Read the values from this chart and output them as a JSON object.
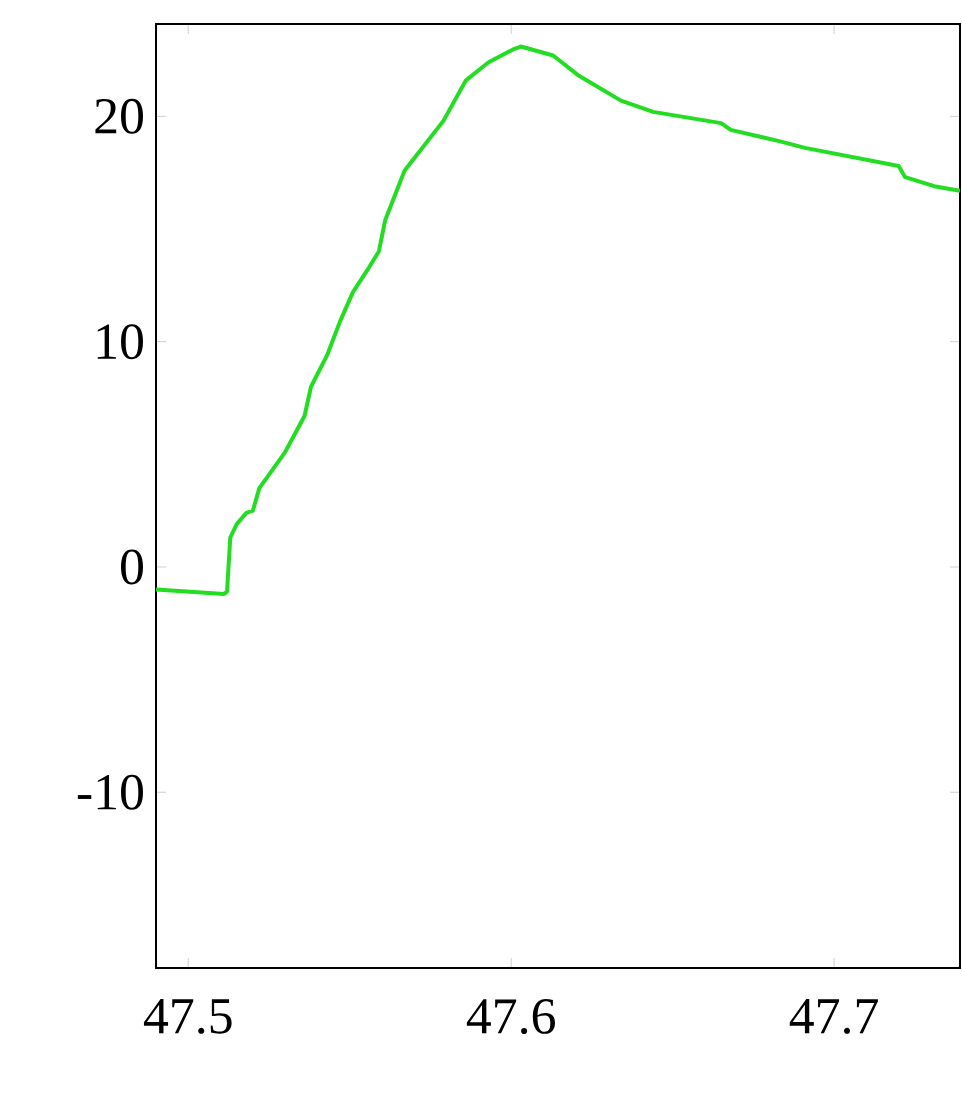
{
  "chart_data": {
    "type": "line",
    "color": "#22dd22",
    "x": [
      47.49,
      47.5006,
      47.511,
      47.512,
      47.513,
      47.515,
      47.518,
      47.52,
      47.522,
      47.527,
      47.53,
      47.536,
      47.538,
      47.543,
      47.547,
      47.551,
      47.556,
      47.559,
      47.561,
      47.567,
      47.573,
      47.579,
      47.586,
      47.593,
      47.601,
      47.603,
      47.613,
      47.621,
      47.634,
      47.644,
      47.665,
      47.668,
      47.683,
      47.691,
      47.72,
      47.722,
      47.731,
      47.739
    ],
    "values": [
      -1.0,
      -1.1,
      -1.2,
      -1.1,
      1.3,
      1.9,
      2.4,
      2.5,
      3.5,
      4.5,
      5.1,
      6.7,
      8.0,
      9.4,
      10.9,
      12.2,
      13.3,
      14.0,
      15.4,
      17.6,
      18.7,
      19.8,
      21.6,
      22.4,
      23.0,
      23.1,
      22.7,
      21.8,
      20.7,
      20.2,
      19.7,
      19.4,
      18.9,
      18.6,
      17.8,
      17.3,
      16.9,
      16.7
    ],
    "xlim": [
      47.49,
      47.739
    ],
    "ylim": [
      -17.8,
      24.1
    ],
    "xticks": [
      47.5,
      47.6,
      47.7
    ],
    "yticks": [
      -10,
      0,
      10,
      20
    ]
  }
}
